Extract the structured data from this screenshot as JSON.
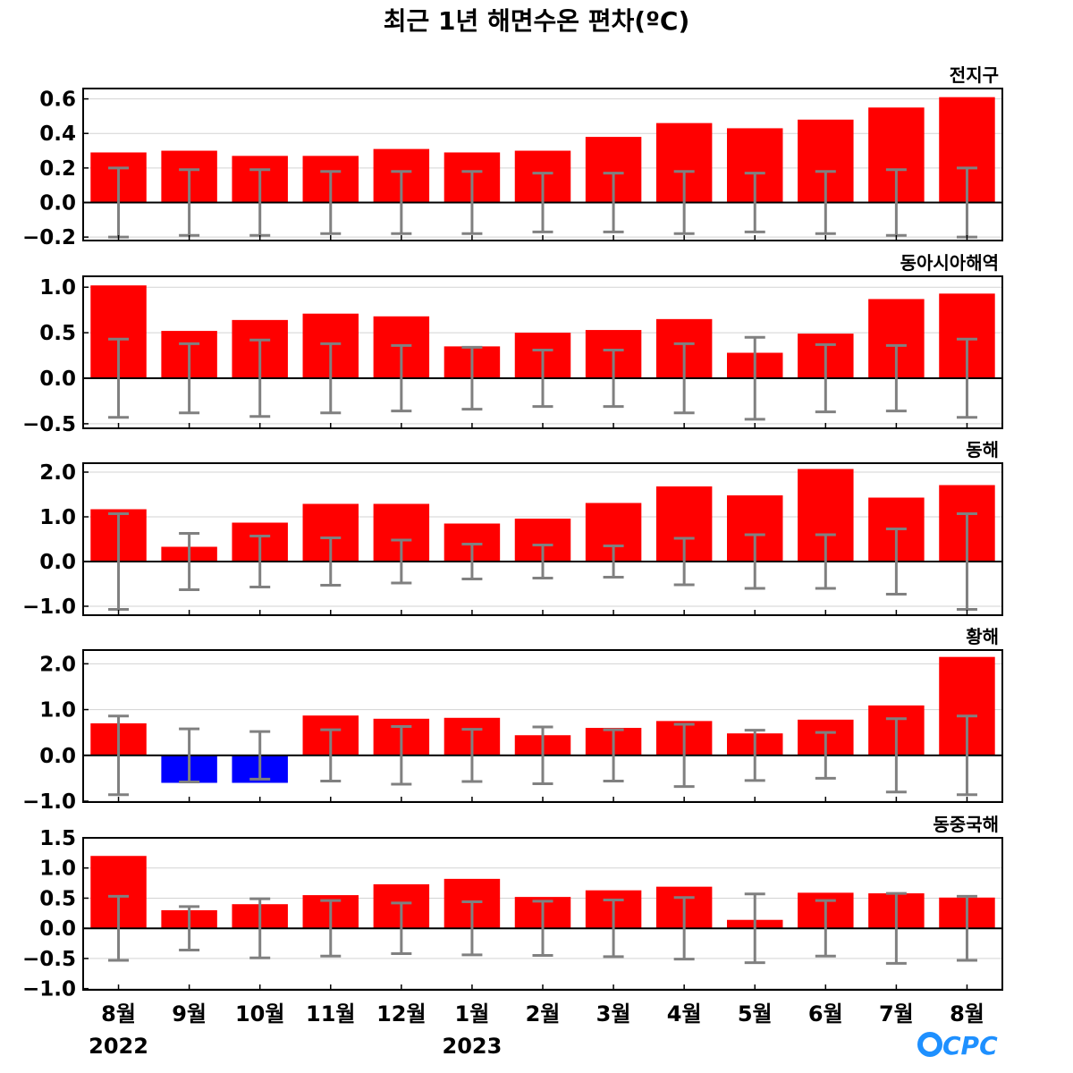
{
  "title": "최근 1년 해면수온 편차(ºC)",
  "x_axis": {
    "months": [
      "8월",
      "9월",
      "10월",
      "11월",
      "12월",
      "1월",
      "2월",
      "3월",
      "4월",
      "5월",
      "6월",
      "7월",
      "8월"
    ],
    "years": [
      {
        "label": "2022",
        "month_index": 0
      },
      {
        "label": "2023",
        "month_index": 5
      }
    ]
  },
  "logo": {
    "text": "OCPC",
    "color": "#1e90ff"
  },
  "colors": {
    "positive_bar": "#ff0000",
    "negative_bar": "#0000ff",
    "error_bar": "#808080",
    "zero_line": "#000000",
    "grid": "#d3d3d3"
  },
  "chart_data": [
    {
      "type": "bar",
      "title": "전지구",
      "categories": [
        "8월",
        "9월",
        "10월",
        "11월",
        "12월",
        "1월",
        "2월",
        "3월",
        "4월",
        "5월",
        "6월",
        "7월",
        "8월"
      ],
      "values": [
        0.29,
        0.3,
        0.27,
        0.27,
        0.31,
        0.29,
        0.3,
        0.38,
        0.46,
        0.43,
        0.48,
        0.55,
        0.61
      ],
      "error": [
        0.2,
        0.19,
        0.19,
        0.18,
        0.18,
        0.18,
        0.17,
        0.17,
        0.18,
        0.17,
        0.18,
        0.19,
        0.2
      ],
      "ylim": [
        -0.22,
        0.66
      ],
      "yticks": [
        -0.2,
        0.0,
        0.2,
        0.4,
        0.6
      ],
      "ytick_labels": [
        "−0.2",
        "0.0",
        "0.2",
        "0.4",
        "0.6"
      ],
      "grid": true
    },
    {
      "type": "bar",
      "title": "동아시아해역",
      "categories": [
        "8월",
        "9월",
        "10월",
        "11월",
        "12월",
        "1월",
        "2월",
        "3월",
        "4월",
        "5월",
        "6월",
        "7월",
        "8월"
      ],
      "values": [
        1.02,
        0.52,
        0.64,
        0.71,
        0.68,
        0.35,
        0.5,
        0.53,
        0.65,
        0.28,
        0.49,
        0.87,
        0.93
      ],
      "error": [
        0.43,
        0.38,
        0.42,
        0.38,
        0.36,
        0.34,
        0.31,
        0.31,
        0.38,
        0.45,
        0.37,
        0.36,
        0.43
      ],
      "ylim": [
        -0.55,
        1.12
      ],
      "yticks": [
        -0.5,
        0.0,
        0.5,
        1.0
      ],
      "ytick_labels": [
        "−0.5",
        "0.0",
        "0.5",
        "1.0"
      ],
      "grid": true
    },
    {
      "type": "bar",
      "title": "동해",
      "categories": [
        "8월",
        "9월",
        "10월",
        "11월",
        "12월",
        "1월",
        "2월",
        "3월",
        "4월",
        "5월",
        "6월",
        "7월",
        "8월"
      ],
      "values": [
        1.17,
        0.33,
        0.87,
        1.29,
        1.29,
        0.85,
        0.96,
        1.31,
        1.68,
        1.48,
        2.07,
        1.43,
        1.71
      ],
      "error": [
        1.07,
        0.63,
        0.57,
        0.53,
        0.48,
        0.39,
        0.37,
        0.35,
        0.52,
        0.6,
        0.6,
        0.73,
        1.07
      ],
      "ylim": [
        -1.2,
        2.2
      ],
      "yticks": [
        -1.0,
        0.0,
        1.0,
        2.0
      ],
      "ytick_labels": [
        "−1.0",
        "0.0",
        "1.0",
        "2.0"
      ],
      "grid": true
    },
    {
      "type": "bar",
      "title": "황해",
      "categories": [
        "8월",
        "9월",
        "10월",
        "11월",
        "12월",
        "1월",
        "2월",
        "3월",
        "4월",
        "5월",
        "6월",
        "7월",
        "8월"
      ],
      "values": [
        0.7,
        -0.6,
        -0.6,
        0.87,
        0.8,
        0.82,
        0.44,
        0.6,
        0.75,
        0.48,
        0.78,
        1.09,
        2.15
      ],
      "error": [
        0.86,
        0.58,
        0.52,
        0.56,
        0.63,
        0.57,
        0.62,
        0.56,
        0.68,
        0.55,
        0.5,
        0.8,
        0.86
      ],
      "ylim": [
        -1.02,
        2.3
      ],
      "yticks": [
        -1.0,
        0.0,
        1.0,
        2.0
      ],
      "ytick_labels": [
        "−1.0",
        "0.0",
        "1.0",
        "2.0"
      ],
      "grid": true
    },
    {
      "type": "bar",
      "title": "동중국해",
      "categories": [
        "8월",
        "9월",
        "10월",
        "11월",
        "12월",
        "1월",
        "2월",
        "3월",
        "4월",
        "5월",
        "6월",
        "7월",
        "8월"
      ],
      "values": [
        1.2,
        0.3,
        0.4,
        0.55,
        0.73,
        0.82,
        0.52,
        0.63,
        0.69,
        0.14,
        0.59,
        0.58,
        0.51
      ],
      "error": [
        0.53,
        0.36,
        0.49,
        0.46,
        0.42,
        0.44,
        0.45,
        0.47,
        0.51,
        0.57,
        0.46,
        0.58,
        0.53
      ],
      "ylim": [
        -1.02,
        1.5
      ],
      "yticks": [
        -1.0,
        -0.5,
        0.0,
        0.5,
        1.0,
        1.5
      ],
      "ytick_labels": [
        "−1.0",
        "−0.5",
        "0.0",
        "0.5",
        "1.0",
        "1.5"
      ],
      "grid": true
    }
  ]
}
